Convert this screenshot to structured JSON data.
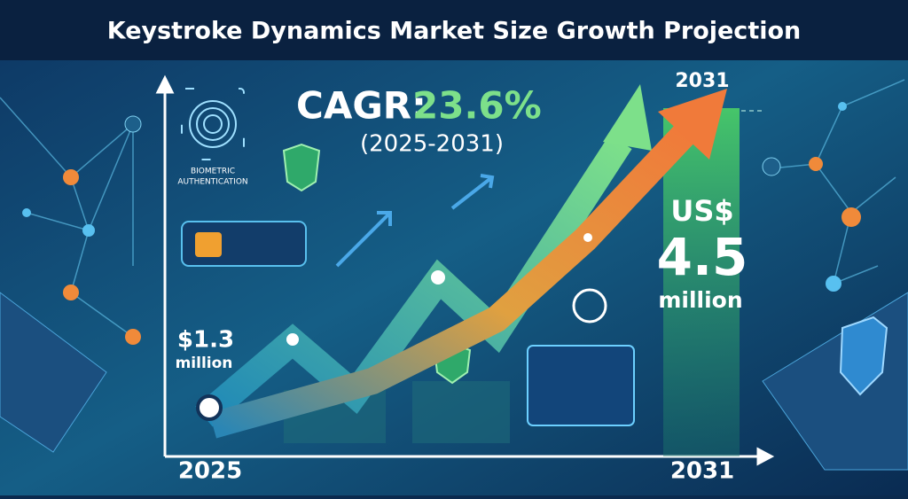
{
  "title": "Keystroke Dynamics Market Size Growth Projection",
  "cagr": {
    "label": "CAGR:",
    "value": "23.6%",
    "period": "(2025-2031)"
  },
  "badge": {
    "lines": [
      "BIOMETRIC",
      "AUTHENTICATION"
    ]
  },
  "start": {
    "year": "2025",
    "amount": "$1.3",
    "unit": "million"
  },
  "end": {
    "top_year": "2031",
    "year": "2031",
    "currency": "US$",
    "amount": "4.5",
    "unit": "million"
  }
}
